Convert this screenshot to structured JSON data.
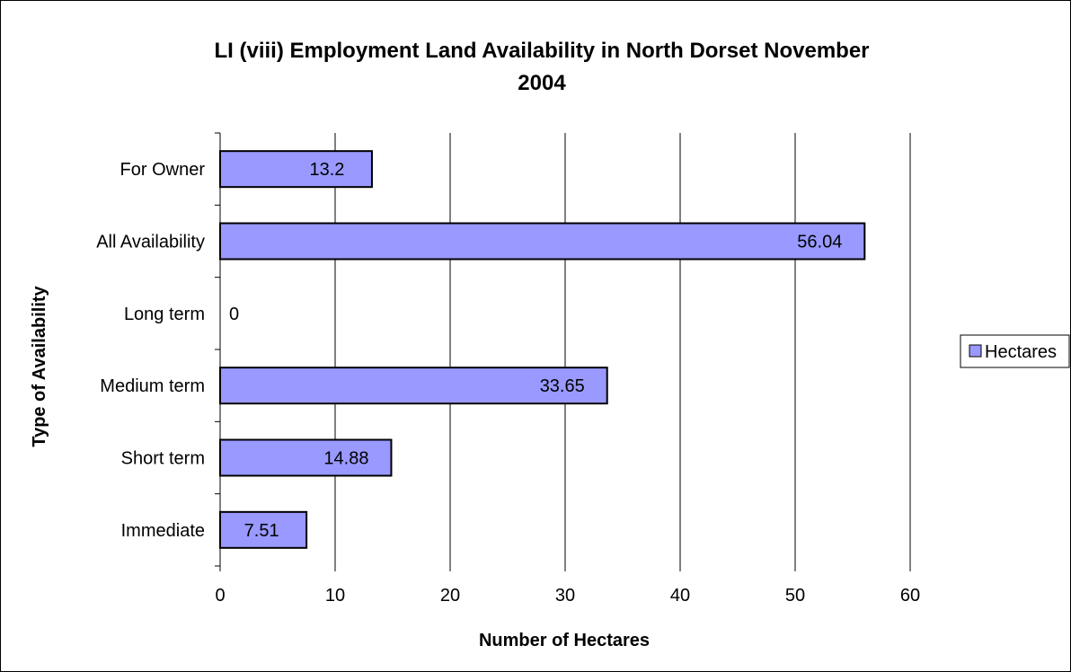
{
  "chart_data": {
    "type": "bar",
    "orientation": "horizontal",
    "title_lines": [
      "LI (viii)  Employment Land Availability in North Dorset November",
      "2004"
    ],
    "xlabel": "Number of Hectares",
    "ylabel": "Type of Availability",
    "categories": [
      "For Owner",
      "All Availability",
      "Long term",
      "Medium term",
      "Short term",
      "Immediate"
    ],
    "series": [
      {
        "name": "Hectares",
        "values": [
          13.2,
          56.04,
          0,
          33.65,
          14.88,
          7.51
        ],
        "labels": [
          "13.2",
          "56.04",
          "0",
          "33.65",
          "14.88",
          "7.51"
        ]
      }
    ],
    "xlim": [
      0,
      60
    ],
    "xticks": [
      0,
      10,
      20,
      30,
      40,
      50,
      60
    ],
    "grid": "vertical",
    "legend": "right",
    "colors": {
      "bar_fill": "#9999ff",
      "bar_stroke": "#000000",
      "grid": "#000000"
    }
  }
}
